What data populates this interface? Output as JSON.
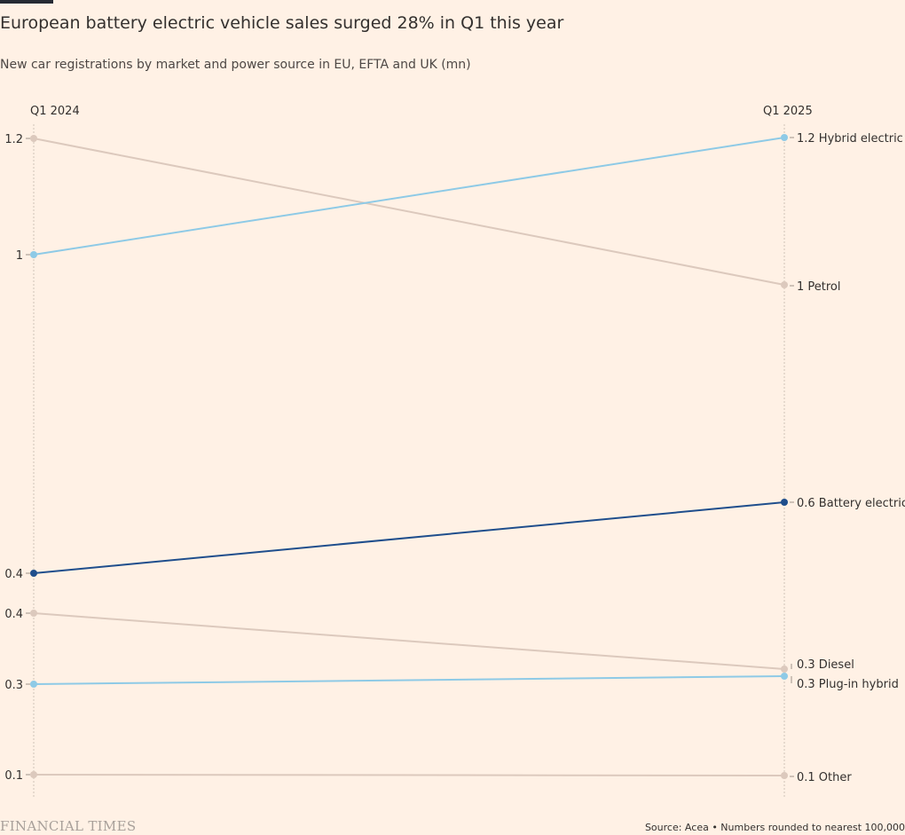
{
  "title": "European battery electric vehicle sales surged 28% in Q1 this year",
  "subtitle": "New car registrations by market and power source in EU, EFTA and UK (mn)",
  "logo_text": "FINANCIAL TIMES",
  "source": "Source: Acea • Numbers rounded to nearest 100,000",
  "colors": {
    "background": "#fff1e5",
    "light_blue": "#8ecae6",
    "dark_blue": "#1f4e8c",
    "grey": "#dcc9bd"
  },
  "chart_data": {
    "type": "slope",
    "periods": [
      "Q1 2024",
      "Q1 2025"
    ],
    "series": [
      {
        "name": "Hybrid electric",
        "values": [
          1.0,
          1.2
        ],
        "labels": [
          "1",
          "1.2"
        ],
        "color": "#8ecae6"
      },
      {
        "name": "Petrol",
        "values": [
          1.2,
          1.0
        ],
        "labels": [
          "1.2",
          "1"
        ],
        "color": "#dcc9bd"
      },
      {
        "name": "Battery electric",
        "values": [
          0.4,
          0.6
        ],
        "labels": [
          "0.4",
          "0.6"
        ],
        "color": "#1f4e8c"
      },
      {
        "name": "Diesel",
        "values": [
          0.4,
          0.3
        ],
        "labels": [
          "0.4",
          "0.3"
        ],
        "color": "#dcc9bd"
      },
      {
        "name": "Plug-in hybrid",
        "values": [
          0.3,
          0.3
        ],
        "labels": [
          "0.3",
          "0.3"
        ],
        "color": "#8ecae6"
      },
      {
        "name": "Other",
        "values": [
          0.1,
          0.1
        ],
        "labels": [
          "0.1",
          "0.1"
        ],
        "color": "#dcc9bd"
      }
    ]
  }
}
